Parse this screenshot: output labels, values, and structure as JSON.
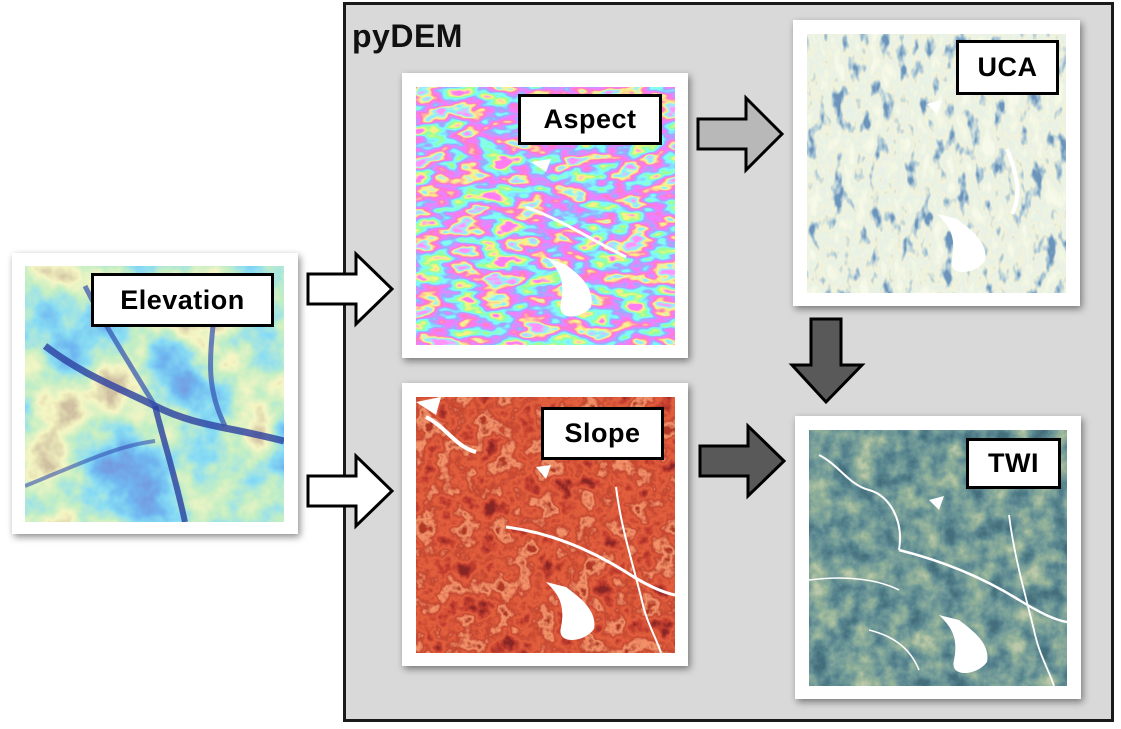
{
  "container": {
    "title": "pyDEM"
  },
  "panels": {
    "elevation": {
      "label": "Elevation",
      "icon": "elevation-map-image"
    },
    "aspect": {
      "label": "Aspect",
      "icon": "aspect-map-image"
    },
    "slope": {
      "label": "Slope",
      "icon": "slope-map-image"
    },
    "uca": {
      "label": "UCA",
      "icon": "uca-map-image"
    },
    "twi": {
      "label": "TWI",
      "icon": "twi-map-image"
    }
  },
  "arrows": [
    {
      "from": "Elevation",
      "to": "Aspect",
      "style": "white-outline"
    },
    {
      "from": "Elevation",
      "to": "Slope",
      "style": "white-outline"
    },
    {
      "from": "Aspect",
      "to": "UCA",
      "style": "light-gray"
    },
    {
      "from": "UCA",
      "to": "TWI",
      "style": "dark-gray"
    },
    {
      "from": "Slope",
      "to": "TWI",
      "style": "dark-gray"
    }
  ],
  "colors": {
    "container_bg": "#d9d9d9",
    "container_border": "#1a1a1a",
    "arrow_light": "#b8b8b8",
    "arrow_dark": "#595959"
  }
}
